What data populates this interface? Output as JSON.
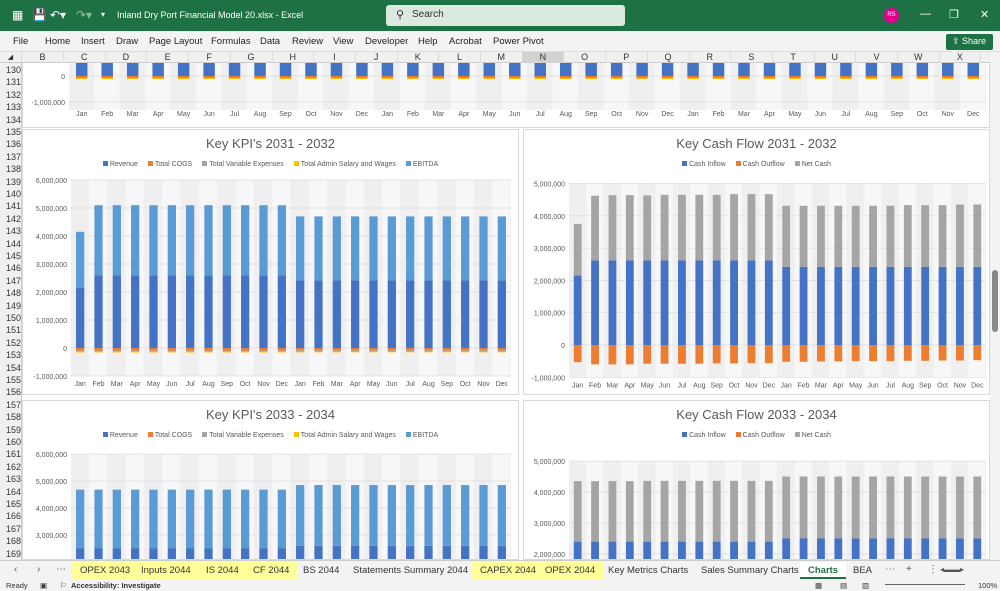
{
  "titlebar": {
    "doc_title": "Inland Dry Port Financial Model 20.xlsx  -  Excel",
    "search_placeholder": "Search",
    "avatar_initials": "RS",
    "accent": "#1e7145"
  },
  "menu": [
    "File",
    "Home",
    "Insert",
    "Draw",
    "Page Layout",
    "Formulas",
    "Data",
    "Review",
    "View",
    "Developer",
    "Help",
    "Acrobat",
    "Power Pivot"
  ],
  "share_label": "Share",
  "columns": [
    "B",
    "C",
    "D",
    "E",
    "F",
    "G",
    "H",
    "I",
    "J",
    "K",
    "L",
    "M",
    "N",
    "O",
    "P",
    "Q",
    "R",
    "S",
    "T",
    "U",
    "V",
    "W",
    "X"
  ],
  "selected_column": "N",
  "rows": [
    130,
    131,
    132,
    133,
    134,
    135,
    136,
    137,
    138,
    139,
    140,
    141,
    142,
    143,
    144,
    145,
    146,
    147,
    148,
    149,
    150,
    151,
    152,
    153,
    154,
    155,
    156,
    157,
    158,
    159,
    160,
    161,
    162,
    163,
    164,
    165,
    166,
    167,
    168,
    169
  ],
  "chart_data": [
    {
      "type": "bar",
      "stacked": true,
      "title": "",
      "categories": [
        "Jan",
        "Feb",
        "Mar",
        "Apr",
        "May",
        "Jun",
        "Jul",
        "Aug",
        "Sep",
        "Oct",
        "Nov",
        "Dec",
        "Jan",
        "Feb",
        "Mar",
        "Apr",
        "May",
        "Jun",
        "Jul",
        "Aug",
        "Sep",
        "Oct",
        "Nov",
        "Dec",
        "Jan",
        "Feb",
        "Mar",
        "Apr",
        "May",
        "Jun",
        "Jul",
        "Aug",
        "Sep",
        "Oct",
        "Nov",
        "Dec"
      ],
      "yticks": [
        {
          "v": 0,
          "label": "0"
        },
        {
          "v": -1000000,
          "label": "-1,000,000"
        }
      ],
      "ylim": [
        -1300000,
        500000
      ],
      "series": [
        {
          "color": "#4472c4",
          "values": [
            500000,
            500000,
            500000,
            500000,
            500000,
            500000,
            500000,
            500000,
            500000,
            500000,
            500000,
            500000,
            500000,
            500000,
            500000,
            500000,
            500000,
            500000,
            500000,
            500000,
            500000,
            500000,
            500000,
            500000,
            500000,
            500000,
            500000,
            500000,
            500000,
            500000,
            500000,
            500000,
            500000,
            500000,
            500000,
            500000
          ]
        },
        {
          "color": "#ed7d31",
          "values": [
            -80000,
            -80000,
            -80000,
            -80000,
            -80000,
            -80000,
            -80000,
            -80000,
            -80000,
            -80000,
            -80000,
            -80000,
            -80000,
            -80000,
            -80000,
            -80000,
            -80000,
            -80000,
            -80000,
            -80000,
            -80000,
            -80000,
            -80000,
            -80000,
            -80000,
            -80000,
            -80000,
            -80000,
            -80000,
            -80000,
            -80000,
            -80000,
            -80000,
            -80000,
            -80000,
            -80000
          ]
        },
        {
          "color": "#ffc000",
          "values": [
            -40000,
            -40000,
            -40000,
            -40000,
            -40000,
            -40000,
            -40000,
            -40000,
            -40000,
            -40000,
            -40000,
            -40000,
            -40000,
            -40000,
            -40000,
            -40000,
            -40000,
            -40000,
            -40000,
            -40000,
            -40000,
            -40000,
            -40000,
            -40000,
            -40000,
            -40000,
            -40000,
            -40000,
            -40000,
            -40000,
            -40000,
            -40000,
            -40000,
            -40000,
            -40000,
            -40000
          ]
        }
      ]
    },
    {
      "type": "bar",
      "stacked": true,
      "title": "Key KPI's 2031 - 2032",
      "categories": [
        "Jan",
        "Feb",
        "Mar",
        "Apr",
        "May",
        "Jun",
        "Jul",
        "Aug",
        "Sep",
        "Oct",
        "Nov",
        "Dec",
        "Jan",
        "Feb",
        "Mar",
        "Apr",
        "May",
        "Jun",
        "Jul",
        "Aug",
        "Sep",
        "Oct",
        "Nov",
        "Dec"
      ],
      "yticks": [
        {
          "v": 6000000,
          "label": "6,000,000"
        },
        {
          "v": 5000000,
          "label": "5,000,000"
        },
        {
          "v": 4000000,
          "label": "4,000,000"
        },
        {
          "v": 3000000,
          "label": "3,000,000"
        },
        {
          "v": 2000000,
          "label": "2,000,000"
        },
        {
          "v": 1000000,
          "label": "1,000,000"
        },
        {
          "v": 0,
          "label": "0"
        },
        {
          "v": -1000000,
          "label": "-1,000,000"
        }
      ],
      "ylim": [
        -1000000,
        6000000
      ],
      "legend": "top",
      "series": [
        {
          "name": "Revenue",
          "color": "#4472c4",
          "values": [
            2150000,
            2600000,
            2600000,
            2600000,
            2600000,
            2600000,
            2600000,
            2600000,
            2600000,
            2600000,
            2600000,
            2600000,
            2420000,
            2420000,
            2420000,
            2420000,
            2420000,
            2420000,
            2420000,
            2420000,
            2420000,
            2420000,
            2420000,
            2420000
          ]
        },
        {
          "name": "Total COGS",
          "color": "#ed7d31",
          "values": [
            -90000,
            -90000,
            -90000,
            -90000,
            -90000,
            -90000,
            -90000,
            -90000,
            -90000,
            -90000,
            -90000,
            -90000,
            -85000,
            -85000,
            -85000,
            -85000,
            -85000,
            -85000,
            -85000,
            -85000,
            -85000,
            -85000,
            -85000,
            -85000
          ]
        },
        {
          "name": "Total Variable Expenses",
          "color": "#a5a5a5",
          "values": [
            -40000,
            -40000,
            -40000,
            -40000,
            -40000,
            -40000,
            -40000,
            -40000,
            -40000,
            -40000,
            -40000,
            -40000,
            -40000,
            -40000,
            -40000,
            -40000,
            -40000,
            -40000,
            -40000,
            -40000,
            -40000,
            -40000,
            -40000,
            -40000
          ]
        },
        {
          "name": "Total Admin Salary and Wages",
          "color": "#ffc000",
          "values": [
            -30000,
            -30000,
            -30000,
            -30000,
            -30000,
            -30000,
            -30000,
            -30000,
            -30000,
            -30000,
            -30000,
            -30000,
            -30000,
            -30000,
            -30000,
            -30000,
            -30000,
            -30000,
            -30000,
            -30000,
            -30000,
            -30000,
            -30000,
            -30000
          ]
        },
        {
          "name": "EBITDA",
          "color": "#5b9bd5",
          "values": [
            2000000,
            2500000,
            2500000,
            2500000,
            2500000,
            2500000,
            2500000,
            2500000,
            2500000,
            2500000,
            2500000,
            2500000,
            2280000,
            2280000,
            2280000,
            2280000,
            2280000,
            2280000,
            2280000,
            2280000,
            2280000,
            2280000,
            2280000,
            2280000
          ]
        }
      ]
    },
    {
      "type": "bar",
      "stacked": true,
      "title": "Key Cash Flow 2031 - 2032",
      "categories": [
        "Jan",
        "Feb",
        "Mar",
        "Apr",
        "May",
        "Jun",
        "Jul",
        "Aug",
        "Sep",
        "Oct",
        "Nov",
        "Dec",
        "Jan",
        "Feb",
        "Mar",
        "Apr",
        "May",
        "Jun",
        "Jul",
        "Aug",
        "Sep",
        "Oct",
        "Nov",
        "Dec"
      ],
      "yticks": [
        {
          "v": 5000000,
          "label": "5,000,000"
        },
        {
          "v": 4000000,
          "label": "4,000,000"
        },
        {
          "v": 3000000,
          "label": "3,000,000"
        },
        {
          "v": 2000000,
          "label": "2,000,000"
        },
        {
          "v": 1000000,
          "label": "1,000,000"
        },
        {
          "v": 0,
          "label": "0"
        },
        {
          "v": -1000000,
          "label": "-1,000,000"
        }
      ],
      "ylim": [
        -1000000,
        5000000
      ],
      "legend": "top",
      "series": [
        {
          "name": "Cash Inflow",
          "color": "#4472c4",
          "values": [
            2150000,
            2620000,
            2620000,
            2620000,
            2620000,
            2620000,
            2620000,
            2620000,
            2620000,
            2620000,
            2620000,
            2620000,
            2420000,
            2420000,
            2420000,
            2420000,
            2420000,
            2420000,
            2420000,
            2420000,
            2420000,
            2420000,
            2420000,
            2420000
          ]
        },
        {
          "name": "Cash Outflow",
          "color": "#ed7d31",
          "values": [
            -530000,
            -600000,
            -600000,
            -600000,
            -580000,
            -580000,
            -580000,
            -580000,
            -570000,
            -570000,
            -560000,
            -560000,
            -520000,
            -520000,
            -510000,
            -510000,
            -500000,
            -500000,
            -500000,
            -490000,
            -490000,
            -480000,
            -480000,
            -470000
          ]
        },
        {
          "name": "Net Cash",
          "color": "#a5a5a5",
          "values": [
            1600000,
            2000000,
            2020000,
            2020000,
            2010000,
            2030000,
            2030000,
            2030000,
            2030000,
            2050000,
            2050000,
            2050000,
            1890000,
            1890000,
            1890000,
            1890000,
            1890000,
            1890000,
            1890000,
            1910000,
            1910000,
            1910000,
            1930000,
            1930000
          ]
        }
      ]
    },
    {
      "type": "bar",
      "stacked": true,
      "title": "Key KPI's 2033 - 2034",
      "categories": [
        "Jan",
        "Feb",
        "Mar",
        "Apr",
        "May",
        "Jun",
        "Jul",
        "Aug",
        "Sep",
        "Oct",
        "Nov",
        "Dec",
        "Jan",
        "Feb",
        "Mar",
        "Apr",
        "May",
        "Jun",
        "Jul",
        "Aug",
        "Sep",
        "Oct",
        "Nov",
        "Dec"
      ],
      "yticks": [
        {
          "v": 6000000,
          "label": "6,000,000"
        },
        {
          "v": 5000000,
          "label": "5,000,000"
        },
        {
          "v": 4000000,
          "label": "4,000,000"
        },
        {
          "v": 3000000,
          "label": "3,000,000"
        }
      ],
      "ylim": [
        -1000000,
        6000000
      ],
      "legend": "top",
      "series": [
        {
          "name": "Revenue",
          "color": "#4472c4",
          "values": [
            2500000,
            2500000,
            2500000,
            2500000,
            2500000,
            2500000,
            2500000,
            2500000,
            2500000,
            2500000,
            2500000,
            2500000,
            2600000,
            2600000,
            2600000,
            2600000,
            2600000,
            2600000,
            2600000,
            2600000,
            2600000,
            2600000,
            2600000,
            2600000
          ]
        },
        {
          "name": "Total COGS",
          "color": "#ed7d31",
          "values": [
            -85000,
            -85000,
            -85000,
            -85000,
            -85000,
            -85000,
            -85000,
            -85000,
            -85000,
            -85000,
            -85000,
            -85000,
            -90000,
            -90000,
            -90000,
            -90000,
            -90000,
            -90000,
            -90000,
            -90000,
            -90000,
            -90000,
            -90000,
            -90000
          ]
        },
        {
          "name": "Total Variable Expenses",
          "color": "#a5a5a5",
          "values": [
            -40000,
            -40000,
            -40000,
            -40000,
            -40000,
            -40000,
            -40000,
            -40000,
            -40000,
            -40000,
            -40000,
            -40000,
            -40000,
            -40000,
            -40000,
            -40000,
            -40000,
            -40000,
            -40000,
            -40000,
            -40000,
            -40000,
            -40000,
            -40000
          ]
        },
        {
          "name": "Total Admin Salary and Wages",
          "color": "#ffc000",
          "values": [
            -30000,
            -30000,
            -30000,
            -30000,
            -30000,
            -30000,
            -30000,
            -30000,
            -30000,
            -30000,
            -30000,
            -30000,
            -30000,
            -30000,
            -30000,
            -30000,
            -30000,
            -30000,
            -30000,
            -30000,
            -30000,
            -30000,
            -30000,
            -30000
          ]
        },
        {
          "name": "EBITDA",
          "color": "#5b9bd5",
          "values": [
            2180000,
            2180000,
            2180000,
            2180000,
            2180000,
            2180000,
            2180000,
            2180000,
            2180000,
            2180000,
            2180000,
            2180000,
            2250000,
            2250000,
            2250000,
            2250000,
            2250000,
            2250000,
            2250000,
            2250000,
            2250000,
            2250000,
            2250000,
            2250000
          ]
        }
      ]
    },
    {
      "type": "bar",
      "stacked": true,
      "title": "Key Cash Flow 2033 - 2034",
      "categories": [
        "Jan",
        "Feb",
        "Mar",
        "Apr",
        "May",
        "Jun",
        "Jul",
        "Aug",
        "Sep",
        "Oct",
        "Nov",
        "Dec",
        "Jan",
        "Feb",
        "Mar",
        "Apr",
        "May",
        "Jun",
        "Jul",
        "Aug",
        "Sep",
        "Oct",
        "Nov",
        "Dec"
      ],
      "yticks": [
        {
          "v": 5000000,
          "label": "5,000,000"
        },
        {
          "v": 4000000,
          "label": "4,000,000"
        },
        {
          "v": 3000000,
          "label": "3,000,000"
        },
        {
          "v": 2000000,
          "label": "2,000,000"
        }
      ],
      "ylim": [
        -1000000,
        5000000
      ],
      "legend": "top",
      "series": [
        {
          "name": "Cash Inflow",
          "color": "#4472c4",
          "values": [
            2400000,
            2400000,
            2400000,
            2400000,
            2400000,
            2400000,
            2400000,
            2400000,
            2400000,
            2400000,
            2400000,
            2400000,
            2500000,
            2500000,
            2500000,
            2500000,
            2500000,
            2500000,
            2500000,
            2500000,
            2500000,
            2500000,
            2500000,
            2500000
          ]
        },
        {
          "name": "Cash Outflow",
          "color": "#ed7d31",
          "values": [
            -480000,
            -480000,
            -480000,
            -480000,
            -480000,
            -480000,
            -480000,
            -480000,
            -480000,
            -480000,
            -480000,
            -480000,
            -500000,
            -500000,
            -500000,
            -500000,
            -500000,
            -500000,
            -500000,
            -500000,
            -500000,
            -500000,
            -500000,
            -500000
          ]
        },
        {
          "name": "Net Cash",
          "color": "#a5a5a5",
          "values": [
            1950000,
            1950000,
            1950000,
            1950000,
            1960000,
            1960000,
            1960000,
            1960000,
            1960000,
            1960000,
            1960000,
            1960000,
            2000000,
            2000000,
            2000000,
            2000000,
            2000000,
            2000000,
            2000000,
            2000000,
            2000000,
            2000000,
            2000000,
            2000000
          ]
        }
      ]
    }
  ],
  "sheet_tabs": [
    {
      "label": "OPEX 2043",
      "highlight": true
    },
    {
      "label": "Inputs 2044",
      "highlight": true
    },
    {
      "label": "IS 2044",
      "highlight": true
    },
    {
      "label": "CF 2044",
      "highlight": true
    },
    {
      "label": "BS 2044",
      "highlight": false
    },
    {
      "label": "Statements Summary 2044",
      "highlight": false
    },
    {
      "label": "CAPEX 2044",
      "highlight": true
    },
    {
      "label": "OPEX 2044",
      "highlight": true
    },
    {
      "label": "Key Metrics Charts",
      "highlight": false
    },
    {
      "label": "Sales Summary Charts",
      "highlight": false
    },
    {
      "label": "Charts",
      "highlight": false,
      "active": true
    },
    {
      "label": "BEA",
      "highlight": false
    }
  ],
  "status": {
    "ready": "Ready",
    "accessibility": "Accessibility: Investigate",
    "zoom": "100%"
  }
}
